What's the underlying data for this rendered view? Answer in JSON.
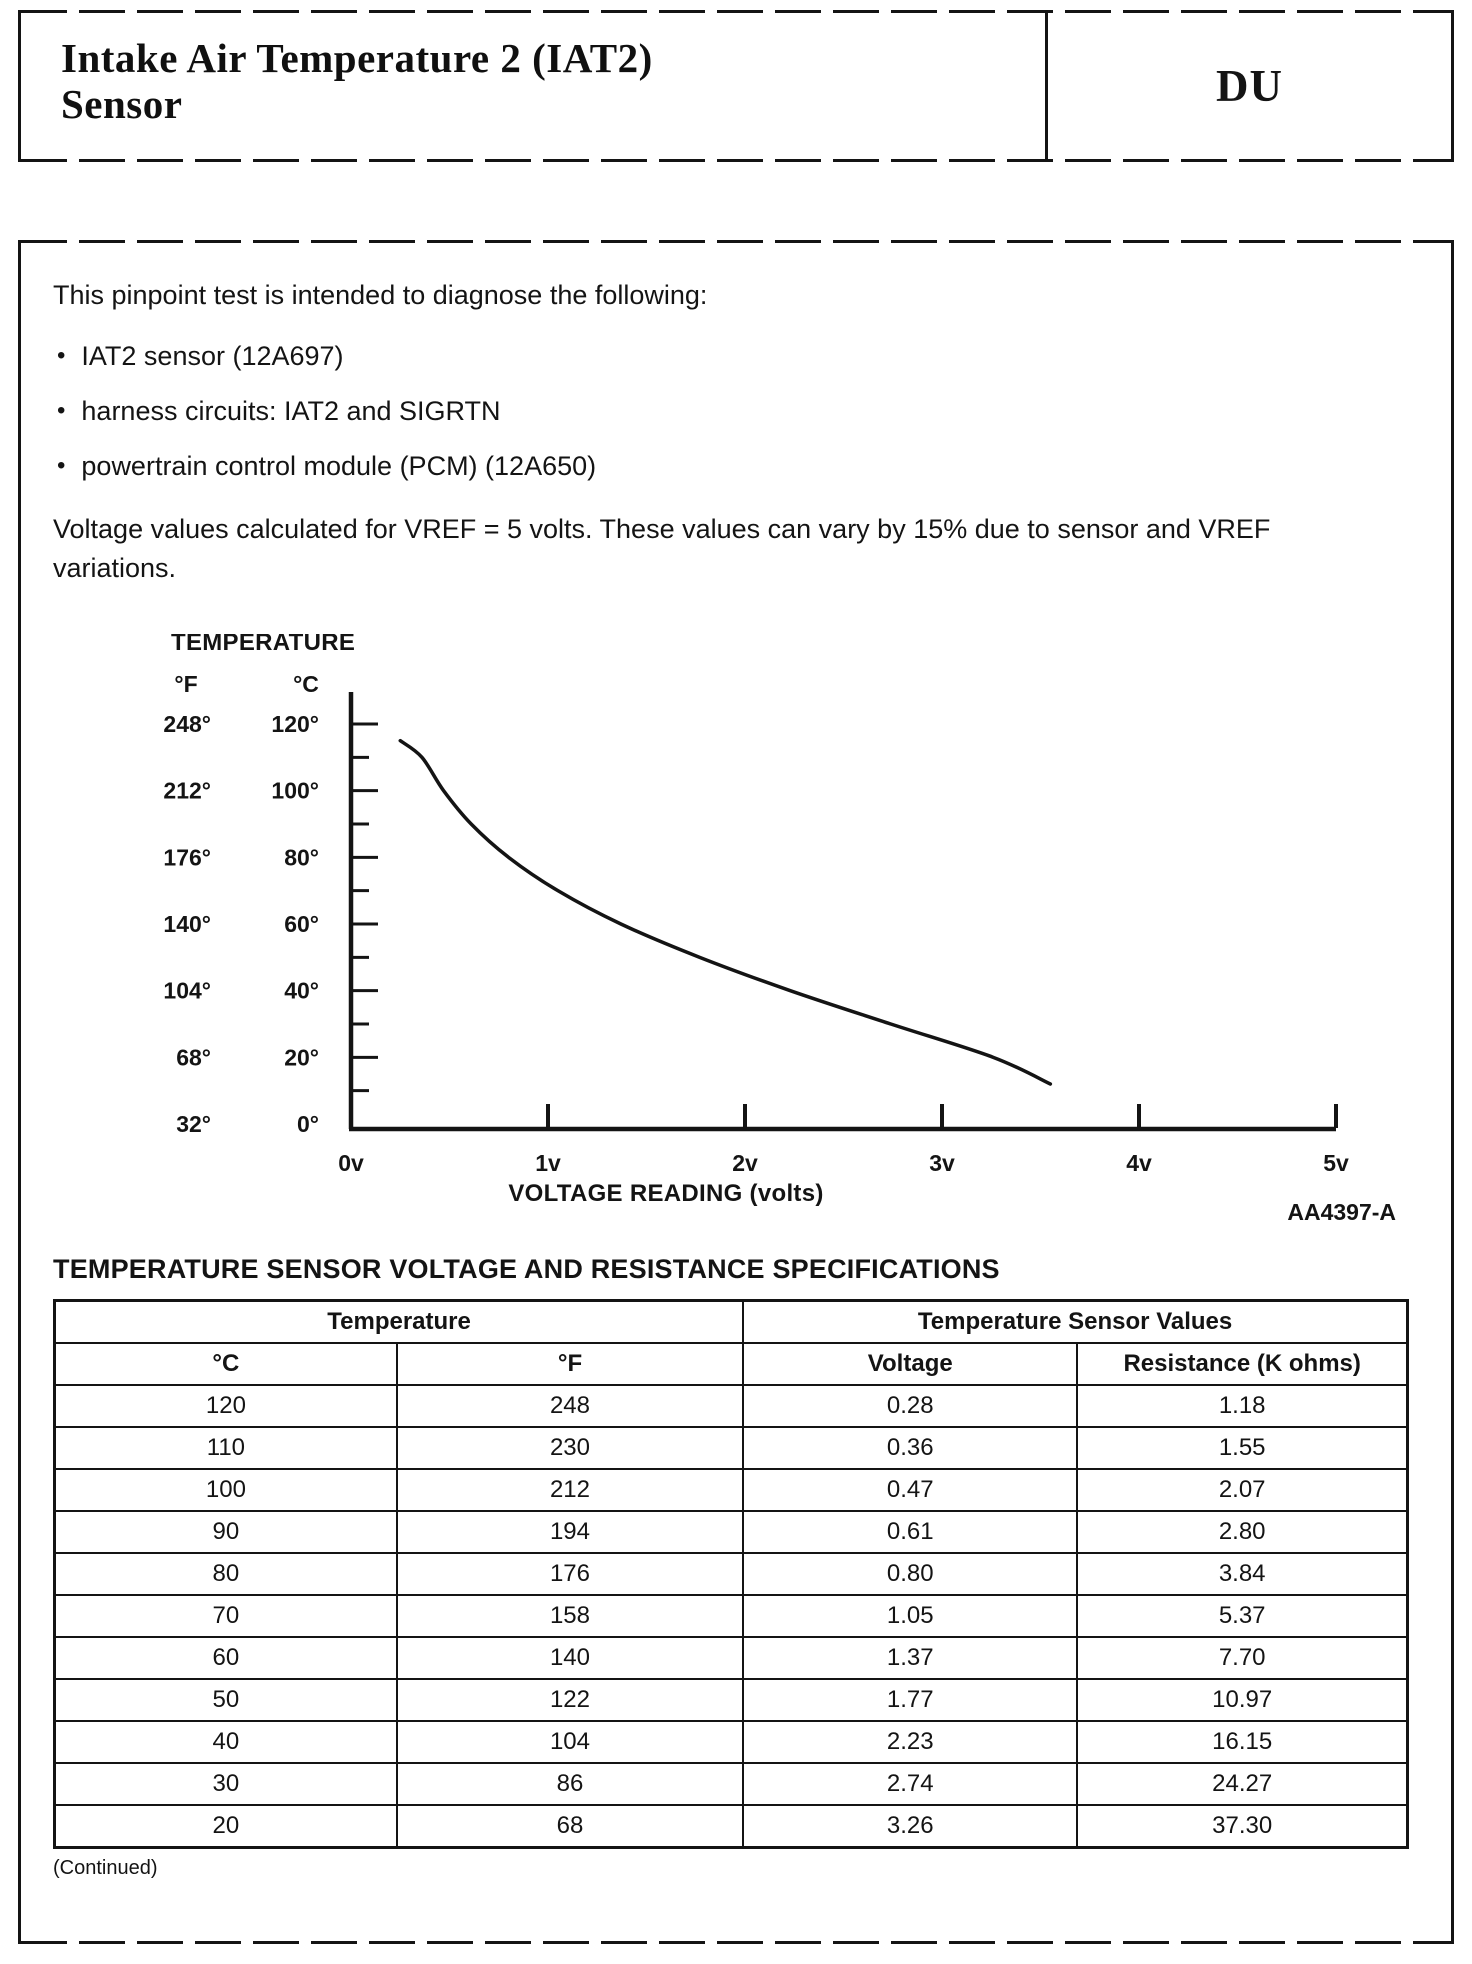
{
  "header": {
    "title_line1": "Intake Air Temperature 2 (IAT2)",
    "title_line2": "Sensor",
    "code": "DU"
  },
  "body": {
    "lead": "This pinpoint test is intended to diagnose the following:",
    "bullets": [
      "IAT2 sensor (12A697)",
      "harness circuits: IAT2 and SIGRTN",
      "powertrain control module (PCM) (12A650)"
    ],
    "vref_note": "Voltage values calculated for VREF = 5 volts. These values can vary by 15% due to sensor and VREF variations."
  },
  "chart_data": {
    "type": "line",
    "title": "TEMPERATURE",
    "xlabel": "VOLTAGE READING (volts)",
    "figure_id": "AA4397-A",
    "grid": false,
    "x_tick_labels": [
      "0v",
      "1v",
      "2v",
      "3v",
      "4v",
      "5v"
    ],
    "x_range_volts": [
      0,
      5
    ],
    "y_axis_units": [
      "°F",
      "°C"
    ],
    "y_tick_labels_f": [
      "248°",
      "212°",
      "176°",
      "140°",
      "104°",
      "68°",
      "32°"
    ],
    "y_tick_labels_c": [
      "120°",
      "100°",
      "80°",
      "60°",
      "40°",
      "20°",
      "0°"
    ],
    "y_range_celsius": [
      0,
      120
    ],
    "series": [
      {
        "name": "IAT2 sensor temperature vs voltage reading",
        "points_volts_celsius": [
          [
            0.25,
            115
          ],
          [
            0.36,
            110
          ],
          [
            0.47,
            100
          ],
          [
            0.61,
            90
          ],
          [
            0.8,
            80
          ],
          [
            1.05,
            70
          ],
          [
            1.37,
            60
          ],
          [
            1.77,
            50
          ],
          [
            2.23,
            40
          ],
          [
            2.74,
            30
          ],
          [
            3.26,
            20
          ],
          [
            3.55,
            12
          ]
        ]
      }
    ]
  },
  "spec_table": {
    "title": "TEMPERATURE SENSOR VOLTAGE AND RESISTANCE SPECIFICATIONS",
    "group_headers": [
      "Temperature",
      "Temperature Sensor Values"
    ],
    "column_headers": [
      "°C",
      "°F",
      "Voltage",
      "Resistance (K ohms)"
    ],
    "rows": [
      [
        "120",
        "248",
        "0.28",
        "1.18"
      ],
      [
        "110",
        "230",
        "0.36",
        "1.55"
      ],
      [
        "100",
        "212",
        "0.47",
        "2.07"
      ],
      [
        "90",
        "194",
        "0.61",
        "2.80"
      ],
      [
        "80",
        "176",
        "0.80",
        "3.84"
      ],
      [
        "70",
        "158",
        "1.05",
        "5.37"
      ],
      [
        "60",
        "140",
        "1.37",
        "7.70"
      ],
      [
        "50",
        "122",
        "1.77",
        "10.97"
      ],
      [
        "40",
        "104",
        "2.23",
        "16.15"
      ],
      [
        "30",
        "86",
        "2.74",
        "24.27"
      ],
      [
        "20",
        "68",
        "3.26",
        "37.30"
      ]
    ],
    "continued": "(Continued)"
  }
}
